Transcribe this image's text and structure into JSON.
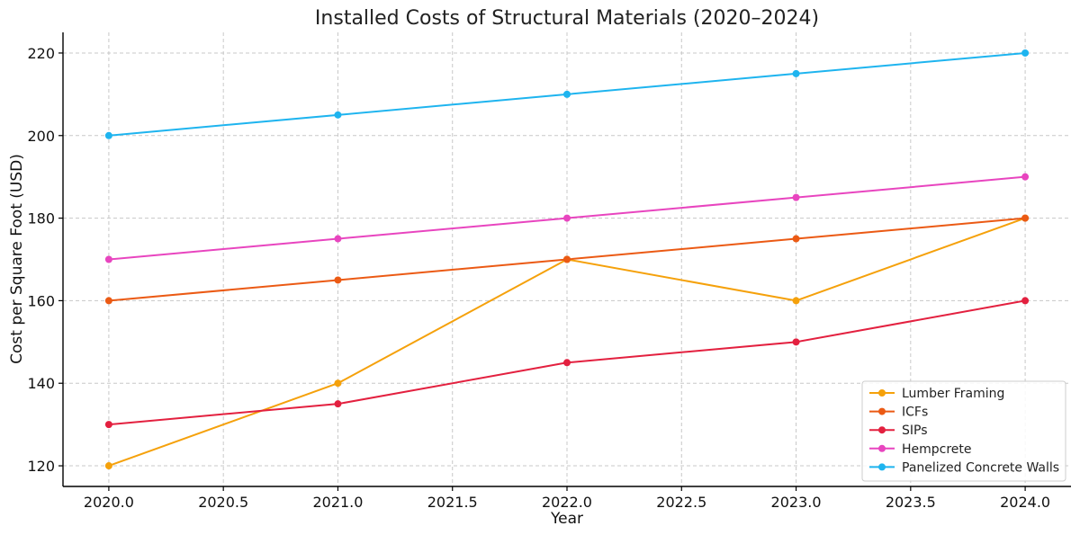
{
  "chart_data": {
    "type": "line",
    "title": "Installed Costs of Structural Materials (2020–2024)",
    "xlabel": "Year",
    "ylabel": "Cost per Square Foot (USD)",
    "x": [
      2020,
      2021,
      2022,
      2023,
      2024
    ],
    "xlim": [
      2019.8,
      2024.2
    ],
    "ylim": [
      115,
      225
    ],
    "xticks": [
      2020.0,
      2020.5,
      2021.0,
      2021.5,
      2022.0,
      2022.5,
      2023.0,
      2023.5,
      2024.0
    ],
    "xtick_labels": [
      "2020.0",
      "2020.5",
      "2021.0",
      "2021.5",
      "2022.0",
      "2022.5",
      "2023.0",
      "2023.5",
      "2024.0"
    ],
    "yticks": [
      120,
      140,
      160,
      180,
      200,
      220
    ],
    "ytick_labels": [
      "120",
      "140",
      "160",
      "180",
      "200",
      "220"
    ],
    "grid": true,
    "legend_position": "bottom-right",
    "series": [
      {
        "name": "Lumber Framing",
        "color": "#f5a10b",
        "values": [
          120,
          140,
          170,
          160,
          180
        ]
      },
      {
        "name": "ICFs",
        "color": "#eb5a14",
        "values": [
          160,
          165,
          170,
          175,
          180
        ]
      },
      {
        "name": "SIPs",
        "color": "#e3203f",
        "values": [
          130,
          135,
          145,
          150,
          160
        ]
      },
      {
        "name": "Hempcrete",
        "color": "#e845bf",
        "values": [
          170,
          175,
          180,
          185,
          190
        ]
      },
      {
        "name": "Panelized Concrete Walls",
        "color": "#1eb4ef",
        "values": [
          200,
          205,
          210,
          215,
          220
        ]
      }
    ]
  }
}
